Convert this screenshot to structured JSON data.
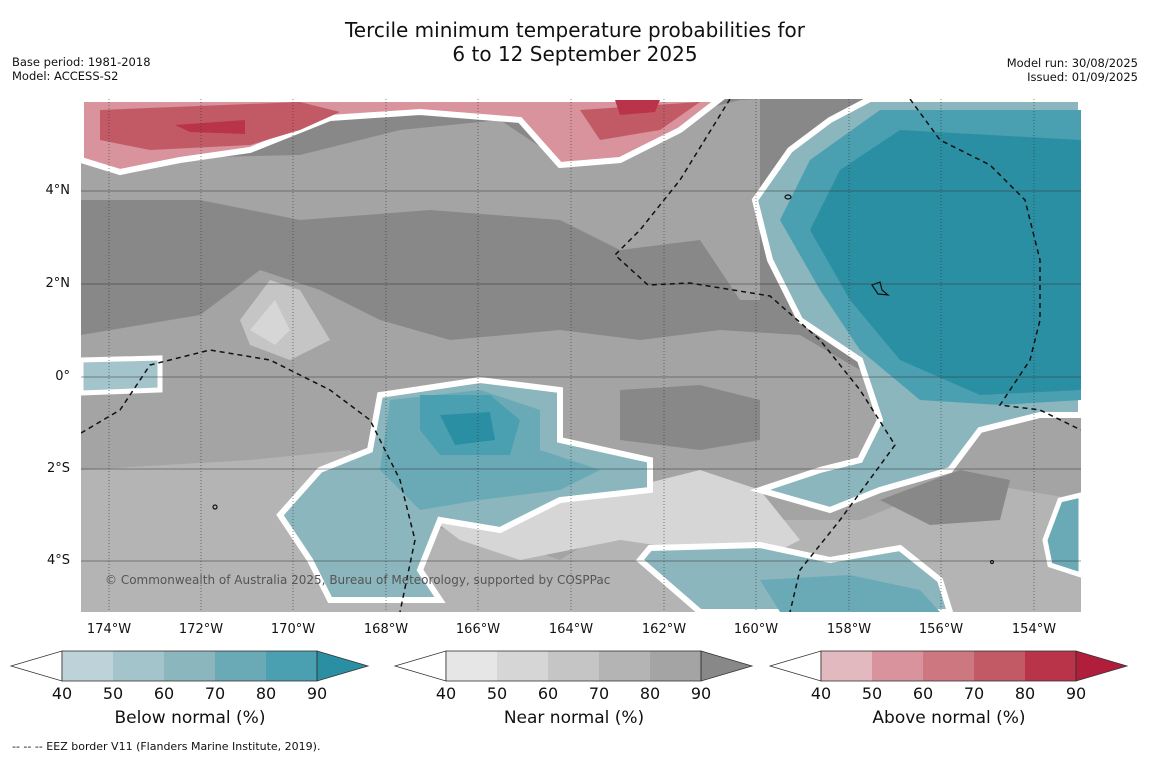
{
  "title_line1": "Tercile minimum temperature probabilities for",
  "title_line2": "6 to 12 September 2025",
  "meta_left": {
    "base_period": "Base period: 1981-2018",
    "model": "Model: ACCESS-S2"
  },
  "meta_right": {
    "model_run": "Model run: 30/08/2025",
    "issued": "Issued: 01/09/2025"
  },
  "copyright": "© Commonwealth of Australia 2025, Bureau of Meteorology, supported by COSPPac",
  "footer": "--  --  -- EEZ border V11 (Flanders Marine Institute, 2019).",
  "lat_labels": [
    "4°N",
    "2°N",
    "0°",
    "2°S",
    "4°S"
  ],
  "lon_labels": [
    "174°W",
    "172°W",
    "170°W",
    "168°W",
    "166°W",
    "164°W",
    "162°W",
    "160°W",
    "158°W",
    "156°W",
    "154°W"
  ],
  "colorbars": [
    {
      "title": "Below normal (%)",
      "colors": [
        "#ffffff",
        "#bdd3d9",
        "#a3c4ca",
        "#8bb6bd",
        "#6aaab6",
        "#4aa0b0",
        "#2b8fa3"
      ]
    },
    {
      "title": "Near normal (%)",
      "colors": [
        "#ffffff",
        "#e6e6e6",
        "#d6d6d6",
        "#c5c5c5",
        "#b4b4b4",
        "#a4a4a4",
        "#888888"
      ]
    },
    {
      "title": "Above normal (%)",
      "colors": [
        "#ffffff",
        "#e2b9bf",
        "#d8939c",
        "#cd7880",
        "#c25a66",
        "#b93349",
        "#b01e3c"
      ]
    }
  ],
  "tick_values": [
    "40",
    "50",
    "60",
    "70",
    "80",
    "90"
  ]
}
